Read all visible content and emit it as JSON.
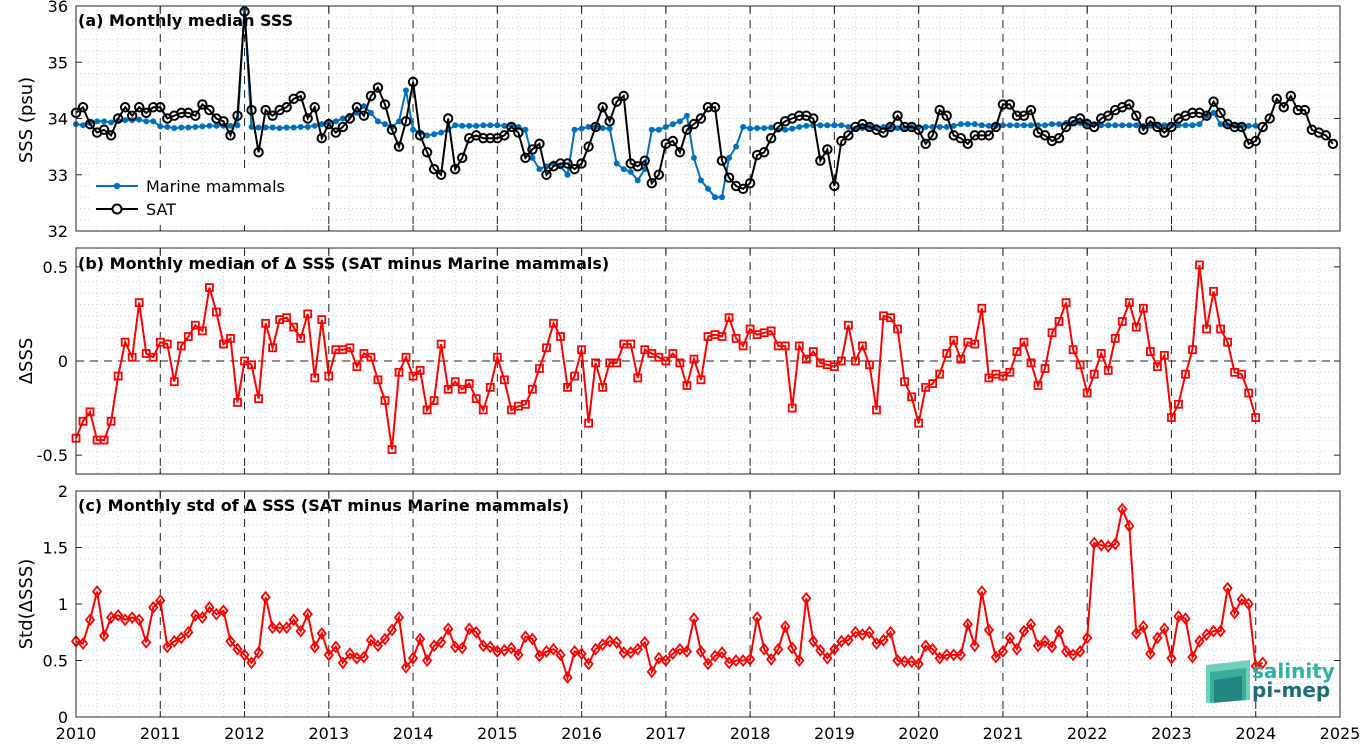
{
  "chart_data": [
    {
      "type": "line",
      "title": "(a) Monthly median SSS",
      "ylabel": "SSS (psu)",
      "xlim": [
        2010,
        2025
      ],
      "ylim": [
        32,
        36
      ],
      "xticks": [
        2010,
        2011,
        2012,
        2013,
        2014,
        2015,
        2016,
        2017,
        2018,
        2019,
        2020,
        2021,
        2022,
        2023,
        2024,
        2025
      ],
      "yticks": [
        32,
        33,
        34,
        35,
        36
      ],
      "grid": true,
      "legend_position": "bottom-left",
      "series": [
        {
          "name": "Marine mammals",
          "color": "#0072BD",
          "marker": "dot",
          "start": 2010.0,
          "step": 0.08333,
          "values": [
            33.9,
            33.88,
            33.92,
            33.95,
            33.95,
            33.93,
            33.96,
            33.97,
            33.97,
            33.98,
            33.95,
            33.95,
            33.86,
            33.85,
            33.83,
            33.84,
            33.84,
            33.85,
            33.86,
            33.87,
            33.87,
            33.87,
            33.87,
            33.88,
            35.95,
            33.85,
            33.84,
            33.84,
            33.84,
            33.83,
            33.84,
            33.84,
            33.85,
            33.85,
            33.87,
            33.9,
            33.92,
            33.95,
            34.0,
            34.05,
            34.1,
            34.22,
            34.1,
            33.95,
            33.9,
            33.85,
            33.95,
            34.5,
            33.8,
            33.75,
            33.7,
            33.72,
            33.75,
            33.8,
            33.88,
            33.87,
            33.87,
            33.87,
            33.88,
            33.88,
            33.88,
            33.87,
            33.88,
            33.85,
            33.8,
            33.3,
            33.1,
            33.15,
            33.2,
            33.15,
            33.0,
            33.8,
            33.82,
            33.85,
            33.85,
            33.83,
            33.82,
            33.2,
            33.1,
            33.05,
            32.9,
            33.1,
            33.8,
            33.8,
            33.85,
            33.9,
            33.95,
            34.05,
            33.3,
            32.9,
            32.75,
            32.6,
            32.6,
            33.3,
            33.5,
            33.85,
            33.82,
            33.83,
            33.83,
            33.84,
            33.8,
            33.8,
            33.82,
            33.85,
            33.87,
            33.88,
            33.88,
            33.88,
            33.88,
            33.88,
            33.85,
            33.82,
            33.83,
            33.85,
            33.85,
            33.85,
            33.85,
            33.83,
            33.83,
            33.85,
            33.85,
            33.85,
            33.85,
            33.85,
            33.85,
            33.87,
            33.9,
            33.9,
            33.9,
            33.88,
            33.87,
            33.87,
            33.88,
            33.88,
            33.88,
            33.88,
            33.88,
            33.88,
            33.88,
            33.9,
            33.9,
            33.92,
            33.92,
            33.92,
            33.9,
            33.9,
            33.88,
            33.88,
            33.88,
            33.88,
            33.88,
            33.88,
            33.87,
            33.87,
            33.87,
            33.88,
            33.88,
            33.88,
            33.88,
            33.88,
            33.9,
            34.05,
            34.1,
            33.9,
            33.88,
            33.87,
            33.87,
            33.87,
            33.87
          ]
        },
        {
          "name": "SAT",
          "color": "#000000",
          "marker": "circle",
          "start": 2010.0,
          "step": 0.08333,
          "values": [
            34.1,
            34.2,
            33.9,
            33.75,
            33.8,
            33.7,
            34.0,
            34.2,
            34.05,
            34.2,
            34.1,
            34.2,
            34.2,
            34.0,
            34.05,
            34.1,
            34.1,
            34.05,
            34.25,
            34.15,
            34.0,
            33.95,
            33.7,
            34.05,
            35.9,
            34.15,
            33.4,
            34.15,
            34.05,
            34.15,
            34.2,
            34.35,
            34.4,
            34.0,
            34.2,
            33.65,
            33.9,
            33.75,
            33.85,
            34.0,
            34.2,
            34.05,
            34.4,
            34.55,
            34.25,
            33.8,
            33.5,
            33.95,
            34.65,
            33.7,
            33.4,
            33.1,
            33.0,
            34.0,
            33.1,
            33.3,
            33.65,
            33.7,
            33.65,
            33.65,
            33.65,
            33.7,
            33.85,
            33.75,
            33.3,
            33.45,
            33.55,
            33.0,
            33.15,
            33.2,
            33.2,
            33.1,
            33.2,
            33.5,
            33.85,
            34.2,
            33.95,
            34.3,
            34.4,
            33.2,
            33.15,
            33.25,
            32.85,
            33.0,
            33.55,
            33.6,
            33.4,
            33.8,
            33.9,
            34.0,
            34.2,
            34.2,
            33.25,
            32.95,
            32.8,
            32.75,
            32.85,
            33.35,
            33.4,
            33.65,
            33.85,
            33.95,
            34.0,
            34.05,
            34.05,
            34.0,
            33.25,
            33.45,
            32.8,
            33.6,
            33.7,
            33.85,
            33.9,
            33.85,
            33.8,
            33.75,
            33.85,
            34.05,
            33.85,
            33.85,
            33.8,
            33.55,
            33.7,
            34.15,
            34.05,
            33.7,
            33.65,
            33.55,
            33.7,
            33.7,
            33.7,
            33.85,
            34.25,
            34.25,
            34.05,
            34.05,
            34.15,
            33.75,
            33.7,
            33.6,
            33.65,
            33.85,
            33.95,
            34.0,
            33.9,
            33.85,
            34.0,
            34.05,
            34.15,
            34.2,
            34.25,
            34.05,
            33.8,
            33.95,
            33.85,
            33.75,
            33.85,
            34.0,
            34.05,
            34.1,
            34.1,
            34.05,
            34.3,
            34.1,
            33.9,
            33.85,
            33.85,
            33.55,
            33.6,
            33.85,
            34.0,
            34.35,
            34.2,
            34.4,
            34.15,
            34.15,
            33.8,
            33.75,
            33.7,
            33.55
          ]
        }
      ]
    },
    {
      "type": "line",
      "title": "(b) Monthly median of Δ SSS (SAT minus Marine mammals)",
      "ylabel": "ΔSSS",
      "xlim": [
        2010,
        2025
      ],
      "ylim": [
        -0.6,
        0.6
      ],
      "yticks": [
        -0.5,
        0,
        0.5
      ],
      "ytick_labels": [
        "-0.5",
        "0",
        "0.5"
      ],
      "zero_line": "dashed",
      "grid": true,
      "series": [
        {
          "color": "#FF0000",
          "marker": "square",
          "start": 2010.0,
          "step": 0.08333,
          "values": [
            -0.41,
            -0.32,
            -0.27,
            -0.42,
            -0.42,
            -0.32,
            -0.08,
            0.1,
            0.02,
            0.31,
            0.04,
            0.02,
            0.1,
            0.09,
            -0.11,
            0.08,
            0.13,
            0.19,
            0.16,
            0.39,
            0.26,
            0.09,
            0.12,
            -0.22,
            0.0,
            -0.02,
            -0.2,
            0.2,
            0.07,
            0.22,
            0.23,
            0.18,
            0.12,
            0.25,
            -0.09,
            0.22,
            -0.08,
            0.06,
            0.06,
            0.07,
            -0.03,
            0.04,
            0.02,
            -0.1,
            -0.21,
            -0.47,
            -0.06,
            0.02,
            -0.08,
            -0.05,
            -0.26,
            -0.21,
            0.09,
            -0.15,
            -0.11,
            -0.15,
            -0.12,
            -0.2,
            -0.26,
            -0.14,
            0.02,
            -0.1,
            -0.26,
            -0.24,
            -0.23,
            -0.15,
            -0.04,
            0.07,
            0.2,
            0.13,
            -0.14,
            -0.08,
            0.06,
            -0.33,
            -0.01,
            -0.14,
            -0.01,
            -0.01,
            0.09,
            0.09,
            -0.09,
            0.06,
            0.04,
            0.02,
            0.0,
            0.04,
            -0.01,
            -0.13,
            0.01,
            -0.1,
            0.13,
            0.14,
            0.13,
            0.23,
            0.12,
            0.08,
            0.17,
            0.14,
            0.15,
            0.16,
            0.08,
            0.08,
            -0.25,
            0.08,
            0.01,
            0.05,
            -0.01,
            -0.02,
            -0.03,
            0.0,
            0.19,
            0.0,
            0.08,
            -0.02,
            -0.26,
            0.24,
            0.23,
            0.17,
            -0.11,
            -0.19,
            -0.33,
            -0.14,
            -0.12,
            -0.07,
            0.04,
            0.11,
            0.01,
            0.1,
            0.09,
            0.28,
            -0.09,
            -0.07,
            -0.08,
            -0.06,
            0.05,
            0.1,
            -0.01,
            -0.13,
            -0.04,
            0.15,
            0.21,
            0.31,
            0.06,
            -0.02,
            -0.17,
            -0.07,
            0.04,
            -0.05,
            0.12,
            0.21,
            0.31,
            0.18,
            0.28,
            0.05,
            -0.03,
            0.03,
            -0.3,
            -0.23,
            -0.07,
            0.06,
            0.51,
            0.17,
            0.37,
            0.17,
            0.1,
            -0.06,
            -0.07,
            -0.17,
            -0.3
          ]
        }
      ]
    },
    {
      "type": "line",
      "title": "(c) Monthly std of Δ SSS (SAT minus Marine mammals)",
      "ylabel": "Std(ΔSSS)",
      "xlim": [
        2010,
        2025
      ],
      "ylim": [
        0,
        2
      ],
      "yticks": [
        0,
        0.5,
        1,
        1.5,
        2
      ],
      "ytick_labels": [
        "0",
        "0.5",
        "1",
        "1.5",
        "2"
      ],
      "grid": true,
      "series": [
        {
          "color": "#FF0000",
          "marker": "diamond",
          "start": 2010.0,
          "step": 0.08333,
          "values": [
            0.67,
            0.65,
            0.86,
            1.11,
            0.72,
            0.88,
            0.9,
            0.86,
            0.88,
            0.86,
            0.66,
            0.97,
            1.03,
            0.62,
            0.67,
            0.7,
            0.75,
            0.9,
            0.88,
            0.97,
            0.91,
            0.94,
            0.67,
            0.6,
            0.55,
            0.48,
            0.57,
            1.06,
            0.79,
            0.79,
            0.79,
            0.86,
            0.76,
            0.91,
            0.62,
            0.74,
            0.55,
            0.62,
            0.48,
            0.56,
            0.52,
            0.53,
            0.68,
            0.63,
            0.69,
            0.77,
            0.88,
            0.44,
            0.52,
            0.69,
            0.5,
            0.63,
            0.66,
            0.78,
            0.62,
            0.61,
            0.78,
            0.75,
            0.63,
            0.62,
            0.58,
            0.59,
            0.61,
            0.55,
            0.71,
            0.69,
            0.54,
            0.58,
            0.6,
            0.55,
            0.35,
            0.58,
            0.56,
            0.47,
            0.6,
            0.64,
            0.67,
            0.66,
            0.57,
            0.57,
            0.6,
            0.66,
            0.4,
            0.52,
            0.5,
            0.56,
            0.6,
            0.58,
            0.87,
            0.58,
            0.47,
            0.54,
            0.57,
            0.48,
            0.5,
            0.5,
            0.51,
            0.88,
            0.6,
            0.51,
            0.6,
            0.8,
            0.61,
            0.5,
            1.05,
            0.67,
            0.59,
            0.52,
            0.6,
            0.67,
            0.68,
            0.75,
            0.73,
            0.75,
            0.65,
            0.68,
            0.75,
            0.5,
            0.49,
            0.49,
            0.47,
            0.63,
            0.6,
            0.52,
            0.55,
            0.55,
            0.55,
            0.82,
            0.63,
            1.11,
            0.77,
            0.53,
            0.58,
            0.7,
            0.6,
            0.76,
            0.82,
            0.63,
            0.67,
            0.62,
            0.76,
            0.58,
            0.55,
            0.58,
            0.7,
            1.54,
            1.52,
            1.51,
            1.53,
            1.84,
            1.69,
            0.74,
            0.8,
            0.56,
            0.7,
            0.78,
            0.52,
            0.89,
            0.87,
            0.53,
            0.67,
            0.73,
            0.76,
            0.76,
            1.14,
            0.92,
            1.04,
            1.0,
            0.45,
            0.48
          ]
        }
      ]
    }
  ],
  "logo": {
    "line1": "salinity",
    "line2": "pi-mep",
    "color1": "#2bb3a3",
    "color2": "#1f6b73"
  }
}
